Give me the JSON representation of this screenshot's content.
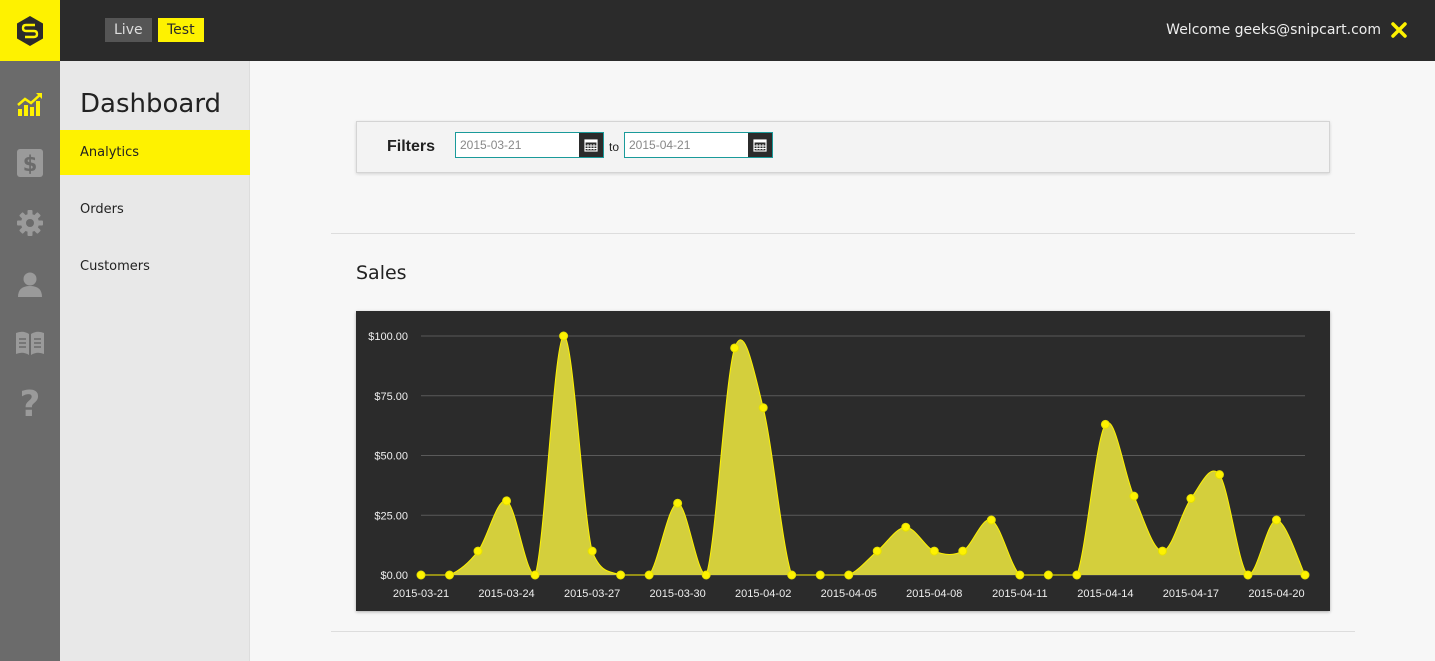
{
  "topbar": {
    "env_live": "Live",
    "env_test": "Test",
    "welcome": "Welcome geeks@snipcart.com"
  },
  "iconbar": {
    "items": [
      "analytics-chart-icon",
      "dollar-icon",
      "gear-icon",
      "user-icon",
      "book-icon",
      "help-question-icon"
    ]
  },
  "subnav": {
    "title": "Dashboard",
    "items": [
      {
        "label": "Analytics",
        "active": true
      },
      {
        "label": "Orders",
        "active": false
      },
      {
        "label": "Customers",
        "active": false
      }
    ]
  },
  "filters": {
    "label": "Filters",
    "from": "2015-03-21",
    "to_label": "to",
    "to": "2015-04-21"
  },
  "sales": {
    "title": "Sales"
  },
  "colors": {
    "accent": "#fef200",
    "dark": "#2b2b2b",
    "area": "#d4cf3c"
  },
  "chart_data": {
    "type": "area",
    "x": [
      "2015-03-21",
      "2015-03-22",
      "2015-03-23",
      "2015-03-24",
      "2015-03-25",
      "2015-03-26",
      "2015-03-27",
      "2015-03-28",
      "2015-03-29",
      "2015-03-30",
      "2015-03-31",
      "2015-04-01",
      "2015-04-02",
      "2015-04-03",
      "2015-04-04",
      "2015-04-05",
      "2015-04-06",
      "2015-04-07",
      "2015-04-08",
      "2015-04-09",
      "2015-04-10",
      "2015-04-11",
      "2015-04-12",
      "2015-04-13",
      "2015-04-14",
      "2015-04-15",
      "2015-04-16",
      "2015-04-17",
      "2015-04-18",
      "2015-04-19",
      "2015-04-20",
      "2015-04-21"
    ],
    "values": [
      0,
      0,
      10,
      31,
      0,
      100,
      10,
      0,
      0,
      30,
      0,
      95,
      70,
      0,
      0,
      0,
      10,
      20,
      10,
      10,
      23,
      0,
      0,
      0,
      63,
      33,
      10,
      32,
      42,
      0,
      23,
      0
    ],
    "xticks": [
      "2015-03-21",
      "2015-03-24",
      "2015-03-27",
      "2015-03-30",
      "2015-04-02",
      "2015-04-05",
      "2015-04-08",
      "2015-04-11",
      "2015-04-14",
      "2015-04-17",
      "2015-04-20"
    ],
    "yticks": [
      "$0.00",
      "$25.00",
      "$50.00",
      "$75.00",
      "$100.00"
    ],
    "ylim": [
      0,
      100
    ],
    "grid": true
  }
}
